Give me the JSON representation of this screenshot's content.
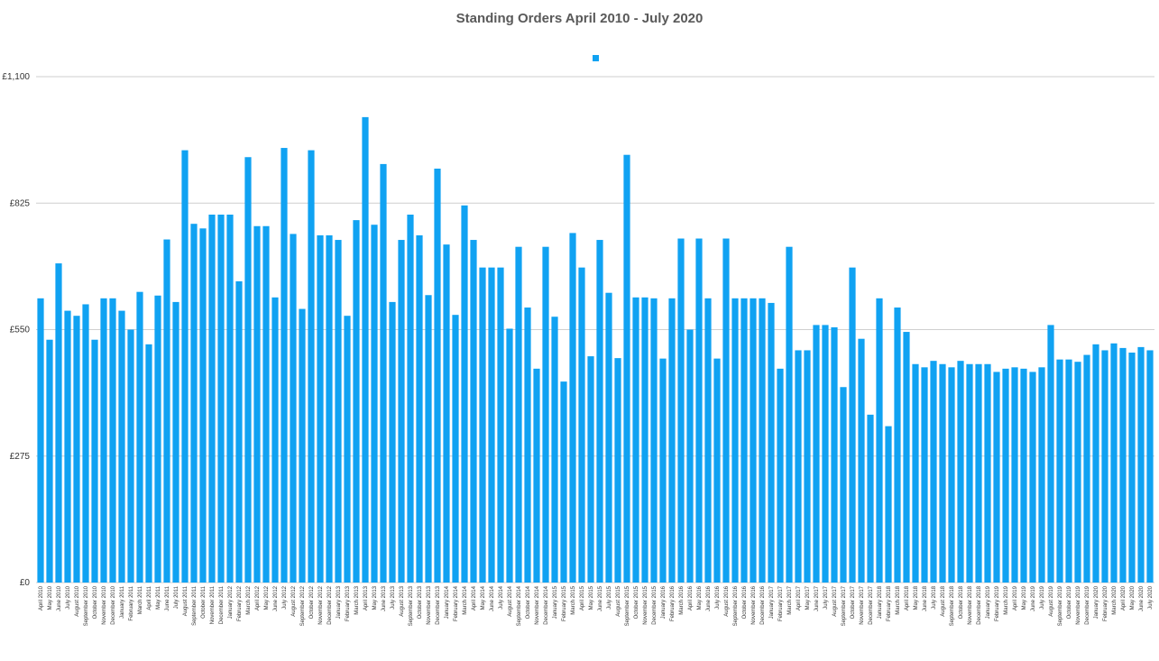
{
  "chart_data": {
    "type": "bar",
    "title": "Standing Orders April 2010 - July 2020",
    "xlabel": "",
    "ylabel": "",
    "ylim": [
      0,
      1100
    ],
    "yticks": [
      0,
      275,
      550,
      825,
      1100
    ],
    "ytick_labels": [
      "£0",
      "£275",
      "£550",
      "£825",
      "£1,100"
    ],
    "grid": true,
    "legend": {
      "position": "top-center",
      "label": ""
    },
    "bar_color": "#10A2F2",
    "categories": [
      "April 2010",
      "May 2010",
      "June 2010",
      "July 2010",
      "August 2010",
      "September 2010",
      "October 2010",
      "November 2010",
      "December 2010",
      "January 2011",
      "February 2011",
      "March 2011",
      "April 2011",
      "May 2011",
      "June 2011",
      "July 2011",
      "August 2011",
      "September 2011",
      "October 2011",
      "November 2011",
      "December 2011",
      "January 2012",
      "February 2012",
      "March 2012",
      "April 2012",
      "May 2012",
      "June 2012",
      "July 2012",
      "August 2012",
      "September 2012",
      "October 2012",
      "November 2012",
      "December 2012",
      "January 2013",
      "February 2013",
      "March 2013",
      "April 2013",
      "May 2013",
      "June 2013",
      "July 2013",
      "August 2013",
      "September 2013",
      "October 2013",
      "November 2013",
      "December 2013",
      "January 2014",
      "February 2014",
      "March 2014",
      "April 2014",
      "May 2014",
      "June 2014",
      "July 2014",
      "August 2014",
      "September 2014",
      "October 2014",
      "November 2014",
      "December 2014",
      "January 2015",
      "February 2015",
      "March 2015",
      "April 2015",
      "May 2015",
      "June 2015",
      "July 2015",
      "August 2015",
      "September 2015",
      "October 2015",
      "November 2015",
      "December 2015",
      "January 2016",
      "February 2016",
      "March 2016",
      "April 2016",
      "May 2016",
      "June 2016",
      "July 2016",
      "August 2016",
      "September 2016",
      "October 2016",
      "November 2016",
      "December 2016",
      "January 2017",
      "February 2017",
      "March 2017",
      "April 2017",
      "May 2017",
      "June 2017",
      "July 2017",
      "August 2017",
      "September 2017",
      "October 2017",
      "November 2017",
      "December 2017",
      "January 2018",
      "February 2018",
      "March 2018",
      "April 2018",
      "May 2018",
      "June 2018",
      "July 2018",
      "August 2018",
      "September 2018",
      "October 2018",
      "November 2018",
      "December 2018",
      "January 2019",
      "February 2019",
      "March 2019",
      "April 2019",
      "May 2019",
      "June 2019",
      "July 2019",
      "August 2019",
      "September 2019",
      "October 2019",
      "November 2019",
      "December 2019",
      "January 2020",
      "February 2020",
      "March 2020",
      "April 2020",
      "May 2020",
      "June 2020",
      "July 2020"
    ],
    "values": [
      618,
      528,
      694,
      591,
      580,
      605,
      528,
      618,
      618,
      591,
      550,
      632,
      518,
      624,
      746,
      610,
      940,
      780,
      770,
      800,
      800,
      800,
      655,
      925,
      775,
      775,
      620,
      945,
      758,
      595,
      940,
      755,
      755,
      745,
      580,
      788,
      1012,
      778,
      910,
      610,
      745,
      800,
      755,
      625,
      900,
      735,
      582,
      820,
      745,
      685,
      685,
      685,
      552,
      730,
      598,
      465,
      730,
      578,
      437,
      760,
      685,
      492,
      745,
      630,
      488,
      930,
      620,
      620,
      618,
      487,
      618,
      748,
      550,
      748,
      618,
      487,
      748,
      618,
      618,
      618,
      618,
      608,
      465,
      730,
      505,
      505,
      560,
      560,
      555,
      425,
      685,
      530,
      365,
      618,
      340,
      598,
      545,
      475,
      468,
      482,
      475,
      468,
      482,
      475,
      475,
      475,
      458,
      465,
      468,
      465,
      458,
      468,
      560,
      485,
      485,
      480,
      495,
      518,
      505,
      520,
      510,
      500,
      512,
      505
    ]
  }
}
